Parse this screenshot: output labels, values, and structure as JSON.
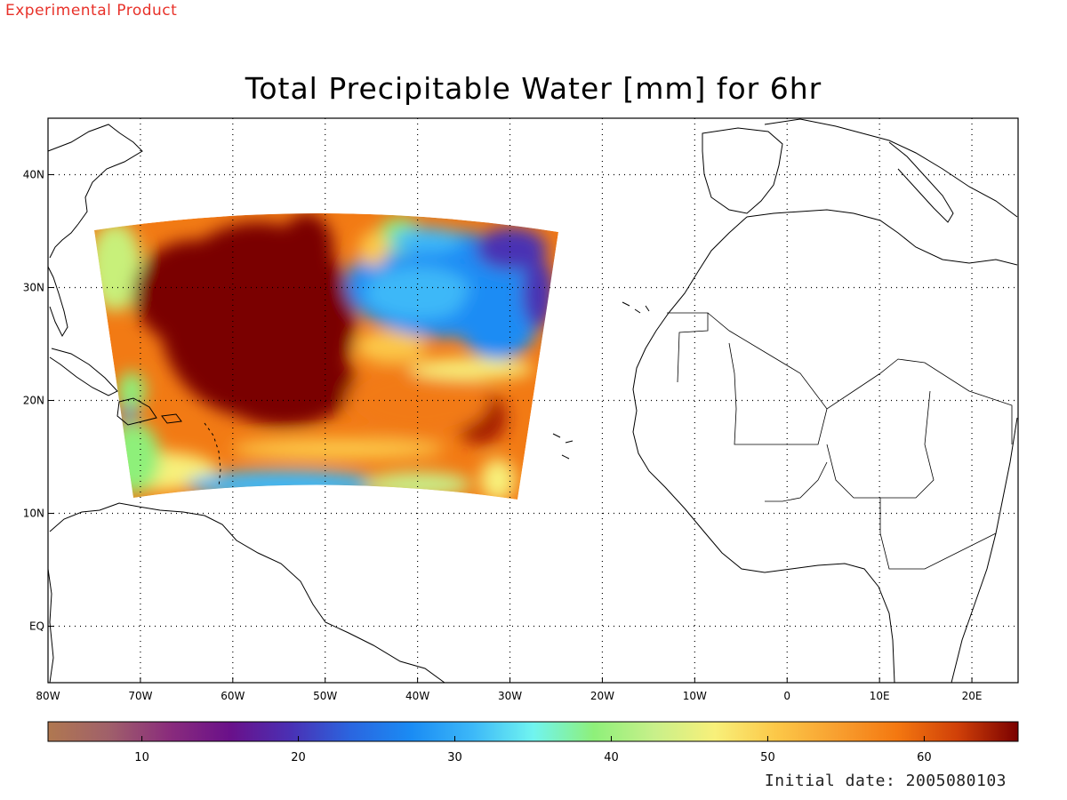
{
  "header": {
    "label": "Experimental Product"
  },
  "map": {
    "title": "Total Precipitable Water [mm] for 6hr",
    "lon_range": [
      -80,
      25
    ],
    "lat_range": [
      -5,
      45
    ],
    "lon_ticks": [
      {
        "value": -80,
        "label": "80W"
      },
      {
        "value": -70,
        "label": "70W"
      },
      {
        "value": -60,
        "label": "60W"
      },
      {
        "value": -50,
        "label": "50W"
      },
      {
        "value": -40,
        "label": "40W"
      },
      {
        "value": -30,
        "label": "30W"
      },
      {
        "value": -20,
        "label": "20W"
      },
      {
        "value": -10,
        "label": "10W"
      },
      {
        "value": 0,
        "label": "0"
      },
      {
        "value": 10,
        "label": "10E"
      },
      {
        "value": 20,
        "label": "20E"
      }
    ],
    "lat_ticks": [
      {
        "value": 40,
        "label": "40N"
      },
      {
        "value": 30,
        "label": "30N"
      },
      {
        "value": 20,
        "label": "20N"
      },
      {
        "value": 10,
        "label": "10N"
      },
      {
        "value": 0,
        "label": "EQ"
      }
    ],
    "grid": "dotted"
  },
  "colorbar": {
    "range": [
      4,
      66
    ],
    "ticks": [
      {
        "value": 10,
        "label": "10"
      },
      {
        "value": 20,
        "label": "20"
      },
      {
        "value": 30,
        "label": "30"
      },
      {
        "value": 40,
        "label": "40"
      },
      {
        "value": 50,
        "label": "50"
      },
      {
        "value": 60,
        "label": "60"
      }
    ],
    "colors": [
      "#b07850",
      "#a0606a",
      "#8a2c7c",
      "#6a108a",
      "#4a30b4",
      "#2a66e0",
      "#1a8cf4",
      "#3cb8f8",
      "#70f4f0",
      "#8ef07a",
      "#c8f08a",
      "#f8f07a",
      "#fcc848",
      "#f8a030",
      "#f47810",
      "#d04008",
      "#7a0000"
    ]
  },
  "footer": {
    "label": "Initial date: 2005080103"
  }
}
